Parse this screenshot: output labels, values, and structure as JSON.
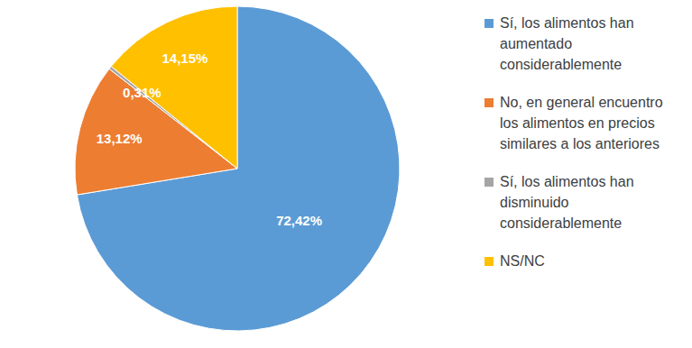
{
  "chart_data": {
    "type": "pie",
    "categories": [
      "Sí, los alimentos han aumentado considerablemente",
      "No, en general encuentro los alimentos en precios similares a los anteriores",
      "Sí, los alimentos han disminuido considerablemente",
      "NS/NC"
    ],
    "values": [
      72.42,
      13.12,
      0.31,
      14.15
    ],
    "value_labels": [
      "72,42%",
      "13,12%",
      "0,31%",
      "14,15%"
    ],
    "colors": [
      "#5b9bd5",
      "#ed7d31",
      "#a5a5a5",
      "#ffc000"
    ],
    "data_labels": true,
    "legend": "right"
  }
}
